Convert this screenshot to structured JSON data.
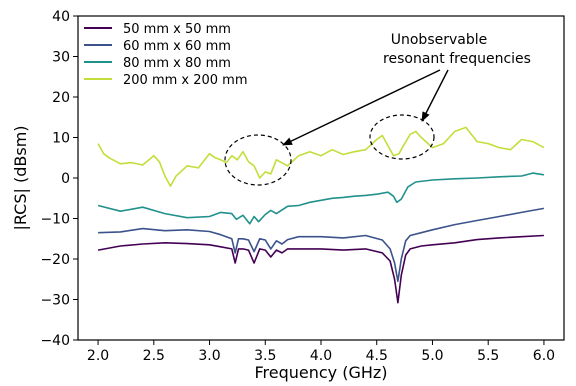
{
  "chart_data": {
    "type": "line",
    "xlabel": "Frequency (GHz)",
    "ylabel": "|RCS| (dBsm)",
    "xlim": [
      1.82,
      6.18
    ],
    "ylim": [
      -40,
      40
    ],
    "xticks": [
      "2.0",
      "2.5",
      "3.0",
      "3.5",
      "4.0",
      "4.5",
      "5.0",
      "5.5",
      "6.0"
    ],
    "yticks": [
      "40",
      "30",
      "20",
      "10",
      "0",
      "−10",
      "−20",
      "−30",
      "−40"
    ],
    "grid": false,
    "legend_position": "top-left",
    "series": [
      {
        "name": "50 mm x 50 mm",
        "color": "#440154",
        "x": [
          2.0,
          2.2,
          2.4,
          2.6,
          2.8,
          3.0,
          3.1,
          3.2,
          3.23,
          3.26,
          3.3,
          3.35,
          3.4,
          3.45,
          3.5,
          3.55,
          3.6,
          3.65,
          3.7,
          3.8,
          4.0,
          4.2,
          4.4,
          4.55,
          4.62,
          4.66,
          4.69,
          4.72,
          4.76,
          4.8,
          4.9,
          5.0,
          5.2,
          5.4,
          5.6,
          5.8,
          6.0
        ],
        "values": [
          -17.8,
          -16.8,
          -16.3,
          -16.0,
          -16.2,
          -16.5,
          -17.0,
          -17.5,
          -21.0,
          -17.5,
          -17.5,
          -17.8,
          -21.0,
          -17.5,
          -17.8,
          -19.5,
          -17.8,
          -18.5,
          -17.5,
          -17.5,
          -17.5,
          -17.8,
          -17.5,
          -18.5,
          -20.5,
          -25.0,
          -30.8,
          -24.0,
          -19.0,
          -17.5,
          -16.8,
          -16.5,
          -16.0,
          -15.2,
          -14.8,
          -14.5,
          -14.2
        ]
      },
      {
        "name": "60 mm x 60 mm",
        "color": "#3b528b",
        "x": [
          2.0,
          2.2,
          2.4,
          2.6,
          2.8,
          3.0,
          3.1,
          3.2,
          3.23,
          3.26,
          3.3,
          3.35,
          3.4,
          3.45,
          3.5,
          3.55,
          3.6,
          3.65,
          3.7,
          3.8,
          4.0,
          4.2,
          4.4,
          4.55,
          4.62,
          4.66,
          4.69,
          4.72,
          4.76,
          4.8,
          4.9,
          5.0,
          5.2,
          5.4,
          5.6,
          5.8,
          6.0
        ],
        "values": [
          -13.5,
          -13.3,
          -12.5,
          -13.0,
          -12.8,
          -13.2,
          -14.0,
          -15.0,
          -18.5,
          -15.0,
          -15.0,
          -15.3,
          -18.2,
          -15.0,
          -15.3,
          -17.5,
          -15.5,
          -16.3,
          -15.2,
          -14.5,
          -14.5,
          -14.8,
          -14.2,
          -15.3,
          -17.5,
          -21.0,
          -25.5,
          -20.0,
          -15.5,
          -14.2,
          -13.5,
          -12.8,
          -11.5,
          -10.5,
          -9.5,
          -8.5,
          -7.5
        ]
      },
      {
        "name": "80 mm x 80 mm",
        "color": "#21918c",
        "x": [
          2.0,
          2.2,
          2.4,
          2.6,
          2.8,
          3.0,
          3.1,
          3.2,
          3.24,
          3.3,
          3.36,
          3.4,
          3.44,
          3.5,
          3.55,
          3.6,
          3.7,
          3.8,
          3.9,
          4.0,
          4.1,
          4.2,
          4.3,
          4.4,
          4.5,
          4.6,
          4.65,
          4.68,
          4.72,
          4.78,
          4.85,
          5.0,
          5.2,
          5.4,
          5.6,
          5.8,
          5.9,
          6.0
        ],
        "values": [
          -6.8,
          -8.2,
          -7.2,
          -8.8,
          -9.8,
          -9.5,
          -8.5,
          -8.8,
          -10.2,
          -9.2,
          -11.3,
          -9.5,
          -10.8,
          -9.0,
          -8.0,
          -8.8,
          -7.0,
          -6.8,
          -6.0,
          -5.5,
          -5.0,
          -4.8,
          -4.5,
          -4.3,
          -4.0,
          -3.5,
          -4.5,
          -6.0,
          -5.2,
          -2.2,
          -1.0,
          -0.5,
          -0.2,
          0.0,
          0.3,
          0.5,
          1.2,
          0.8
        ]
      },
      {
        "name": "200 mm x 200 mm",
        "color": "#c5dd3a",
        "x": [
          2.0,
          2.05,
          2.1,
          2.2,
          2.3,
          2.4,
          2.5,
          2.55,
          2.6,
          2.65,
          2.7,
          2.8,
          2.9,
          3.0,
          3.05,
          3.1,
          3.15,
          3.2,
          3.25,
          3.3,
          3.35,
          3.4,
          3.45,
          3.5,
          3.55,
          3.6,
          3.7,
          3.8,
          3.9,
          4.0,
          4.1,
          4.2,
          4.3,
          4.4,
          4.5,
          4.55,
          4.6,
          4.65,
          4.7,
          4.75,
          4.8,
          4.85,
          4.9,
          5.0,
          5.1,
          5.2,
          5.3,
          5.4,
          5.5,
          5.6,
          5.7,
          5.8,
          5.9,
          6.0
        ],
        "values": [
          8.5,
          6.0,
          5.0,
          3.5,
          3.8,
          3.2,
          5.5,
          4.0,
          0.5,
          -2.0,
          0.5,
          3.0,
          2.5,
          6.0,
          5.0,
          4.5,
          3.8,
          5.5,
          4.5,
          6.5,
          4.0,
          3.0,
          0.0,
          1.5,
          1.0,
          4.5,
          3.0,
          5.5,
          6.5,
          5.5,
          7.0,
          5.8,
          6.5,
          7.0,
          9.5,
          10.5,
          8.0,
          5.5,
          6.0,
          8.5,
          10.8,
          11.5,
          10.0,
          7.5,
          8.5,
          11.5,
          12.5,
          9.0,
          8.5,
          7.5,
          7.0,
          9.5,
          9.0,
          7.5
        ]
      }
    ],
    "annotation": {
      "text_lines": [
        "Unobservable",
        "resonant frequencies"
      ]
    }
  }
}
